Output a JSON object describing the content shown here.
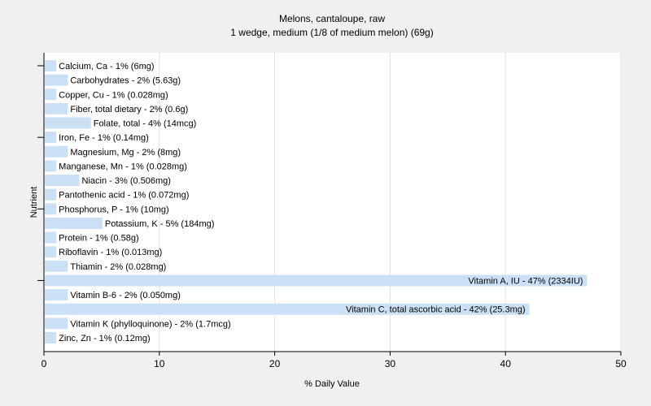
{
  "chart_data": {
    "type": "bar",
    "orientation": "horizontal",
    "title": "Melons, cantaloupe, raw",
    "subtitle": "1 wedge, medium (1/8 of medium melon) (69g)",
    "xlabel": "% Daily Value",
    "ylabel": "Nutrient",
    "xlim": [
      0,
      50
    ],
    "xticks": [
      0,
      10,
      20,
      30,
      40,
      50
    ],
    "grid": true,
    "bar_color": "#cce0f5",
    "background": "#ffffff",
    "categories": [
      "Calcium, Ca",
      "Carbohydrates",
      "Copper, Cu",
      "Fiber, total dietary",
      "Folate, total",
      "Iron, Fe",
      "Magnesium, Mg",
      "Manganese, Mn",
      "Niacin",
      "Pantothenic acid",
      "Phosphorus, P",
      "Potassium, K",
      "Protein",
      "Riboflavin",
      "Thiamin",
      "Vitamin A, IU",
      "Vitamin B-6",
      "Vitamin C, total ascorbic acid",
      "Vitamin K (phylloquinone)",
      "Zinc, Zn"
    ],
    "values": [
      1,
      2,
      1,
      2,
      4,
      1,
      2,
      1,
      3,
      1,
      1,
      5,
      1,
      1,
      2,
      47,
      2,
      42,
      2,
      1
    ],
    "labels": [
      "Calcium, Ca - 1% (6mg)",
      "Carbohydrates - 2% (5.63g)",
      "Copper, Cu - 1% (0.028mg)",
      "Fiber, total dietary - 2% (0.6g)",
      "Folate, total - 4% (14mcg)",
      "Iron, Fe - 1% (0.14mg)",
      "Magnesium, Mg - 2% (8mg)",
      "Manganese, Mn - 1% (0.028mg)",
      "Niacin - 3% (0.506mg)",
      "Pantothenic acid - 1% (0.072mg)",
      "Phosphorus, P - 1% (10mg)",
      "Potassium, K - 5% (184mg)",
      "Protein - 1% (0.58g)",
      "Riboflavin - 1% (0.013mg)",
      "Thiamin - 2% (0.028mg)",
      "Vitamin A, IU - 47% (2334IU)",
      "Vitamin B-6 - 2% (0.050mg)",
      "Vitamin C, total ascorbic acid - 42% (25.3mg)",
      "Vitamin K (phylloquinone) - 2% (1.7mcg)",
      "Zinc, Zn - 1% (0.12mg)"
    ]
  }
}
